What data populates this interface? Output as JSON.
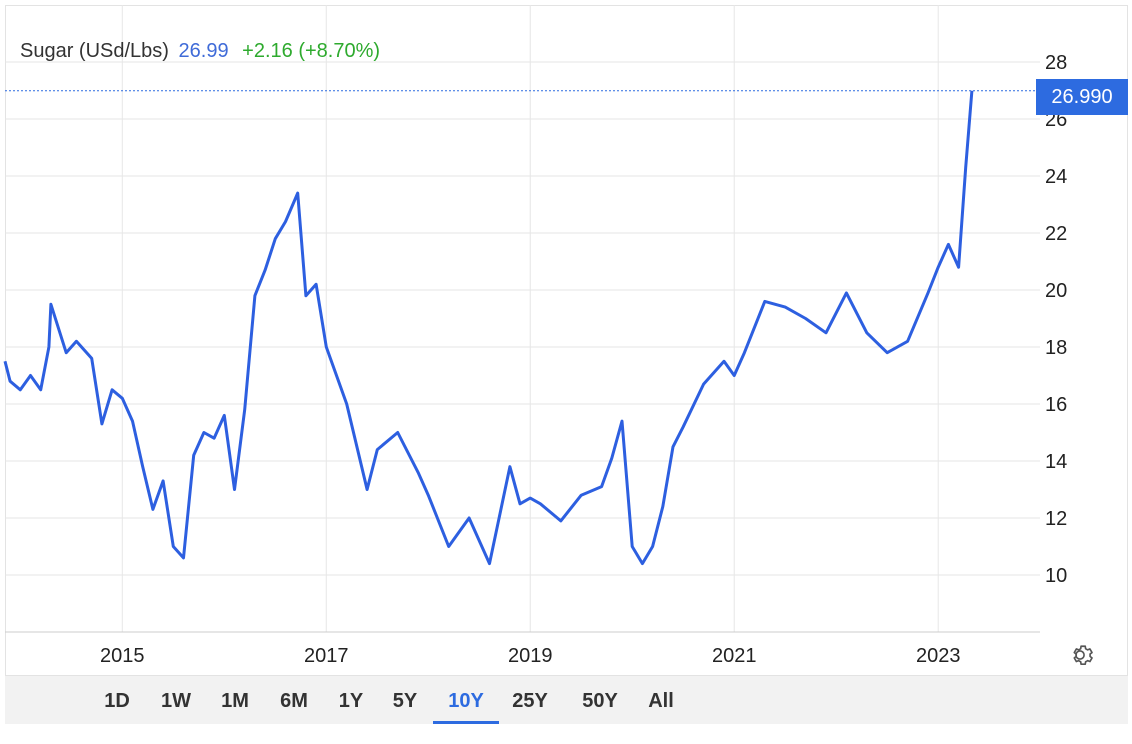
{
  "legend": {
    "name": "Sugar (USd/Lbs)",
    "price": "26.99",
    "change": "+2.16 (+8.70%)"
  },
  "last_value_label": "26.990",
  "colors": {
    "line": "#2d5fe0",
    "accent": "#2d6be0",
    "positive": "#2eaa2e",
    "grid": "#e6e6e6"
  },
  "settings_icon": "gear-icon",
  "ranges": [
    "1D",
    "1W",
    "1M",
    "6M",
    "1Y",
    "5Y",
    "10Y",
    "25Y",
    "50Y",
    "All"
  ],
  "active_range": "10Y",
  "chart_data": {
    "type": "line",
    "title": "Sugar (USd/Lbs)",
    "xlabel": "",
    "ylabel": "",
    "x_ticks": [
      "2015",
      "2017",
      "2019",
      "2021",
      "2023"
    ],
    "y_ticks": [
      10,
      12,
      14,
      16,
      18,
      20,
      22,
      24,
      26,
      28
    ],
    "ylim": [
      8,
      30
    ],
    "xlim": [
      2013.85,
      2023.9
    ],
    "grid": true,
    "legend_position": "top-left",
    "series": [
      {
        "name": "Sugar (USd/Lbs)",
        "x": [
          2013.85,
          2013.9,
          2014.0,
          2014.1,
          2014.2,
          2014.28,
          2014.3,
          2014.45,
          2014.55,
          2014.7,
          2014.8,
          2014.9,
          2015.0,
          2015.1,
          2015.2,
          2015.3,
          2015.4,
          2015.5,
          2015.6,
          2015.7,
          2015.8,
          2015.9,
          2016.0,
          2016.1,
          2016.2,
          2016.3,
          2016.4,
          2016.5,
          2016.6,
          2016.72,
          2016.8,
          2016.9,
          2017.0,
          2017.2,
          2017.4,
          2017.5,
          2017.7,
          2017.9,
          2018.0,
          2018.2,
          2018.4,
          2018.6,
          2018.8,
          2018.9,
          2019.0,
          2019.1,
          2019.3,
          2019.5,
          2019.7,
          2019.8,
          2019.9,
          2020.0,
          2020.1,
          2020.2,
          2020.3,
          2020.4,
          2020.5,
          2020.7,
          2020.9,
          2021.0,
          2021.1,
          2021.3,
          2021.5,
          2021.7,
          2021.9,
          2022.1,
          2022.3,
          2022.5,
          2022.7,
          2022.9,
          2023.0,
          2023.1,
          2023.2,
          2023.27,
          2023.33
        ],
        "y": [
          17.5,
          16.8,
          16.5,
          17.0,
          16.5,
          18.0,
          19.5,
          17.8,
          18.2,
          17.6,
          15.3,
          16.5,
          16.2,
          15.4,
          13.8,
          12.3,
          13.3,
          11.0,
          10.6,
          14.2,
          15.0,
          14.8,
          15.6,
          13.0,
          15.8,
          19.8,
          20.7,
          21.8,
          22.4,
          23.4,
          19.8,
          20.2,
          18.0,
          16.0,
          13.0,
          14.4,
          15.0,
          13.6,
          12.8,
          11.0,
          12.0,
          10.4,
          13.8,
          12.5,
          12.7,
          12.5,
          11.9,
          12.8,
          13.1,
          14.1,
          15.4,
          11.0,
          10.4,
          11.0,
          12.4,
          14.5,
          15.2,
          16.7,
          17.5,
          17.0,
          17.8,
          19.6,
          19.4,
          19.0,
          18.5,
          19.9,
          18.5,
          17.8,
          18.2,
          19.9,
          20.8,
          21.6,
          20.8,
          24.3,
          26.99
        ]
      }
    ]
  }
}
